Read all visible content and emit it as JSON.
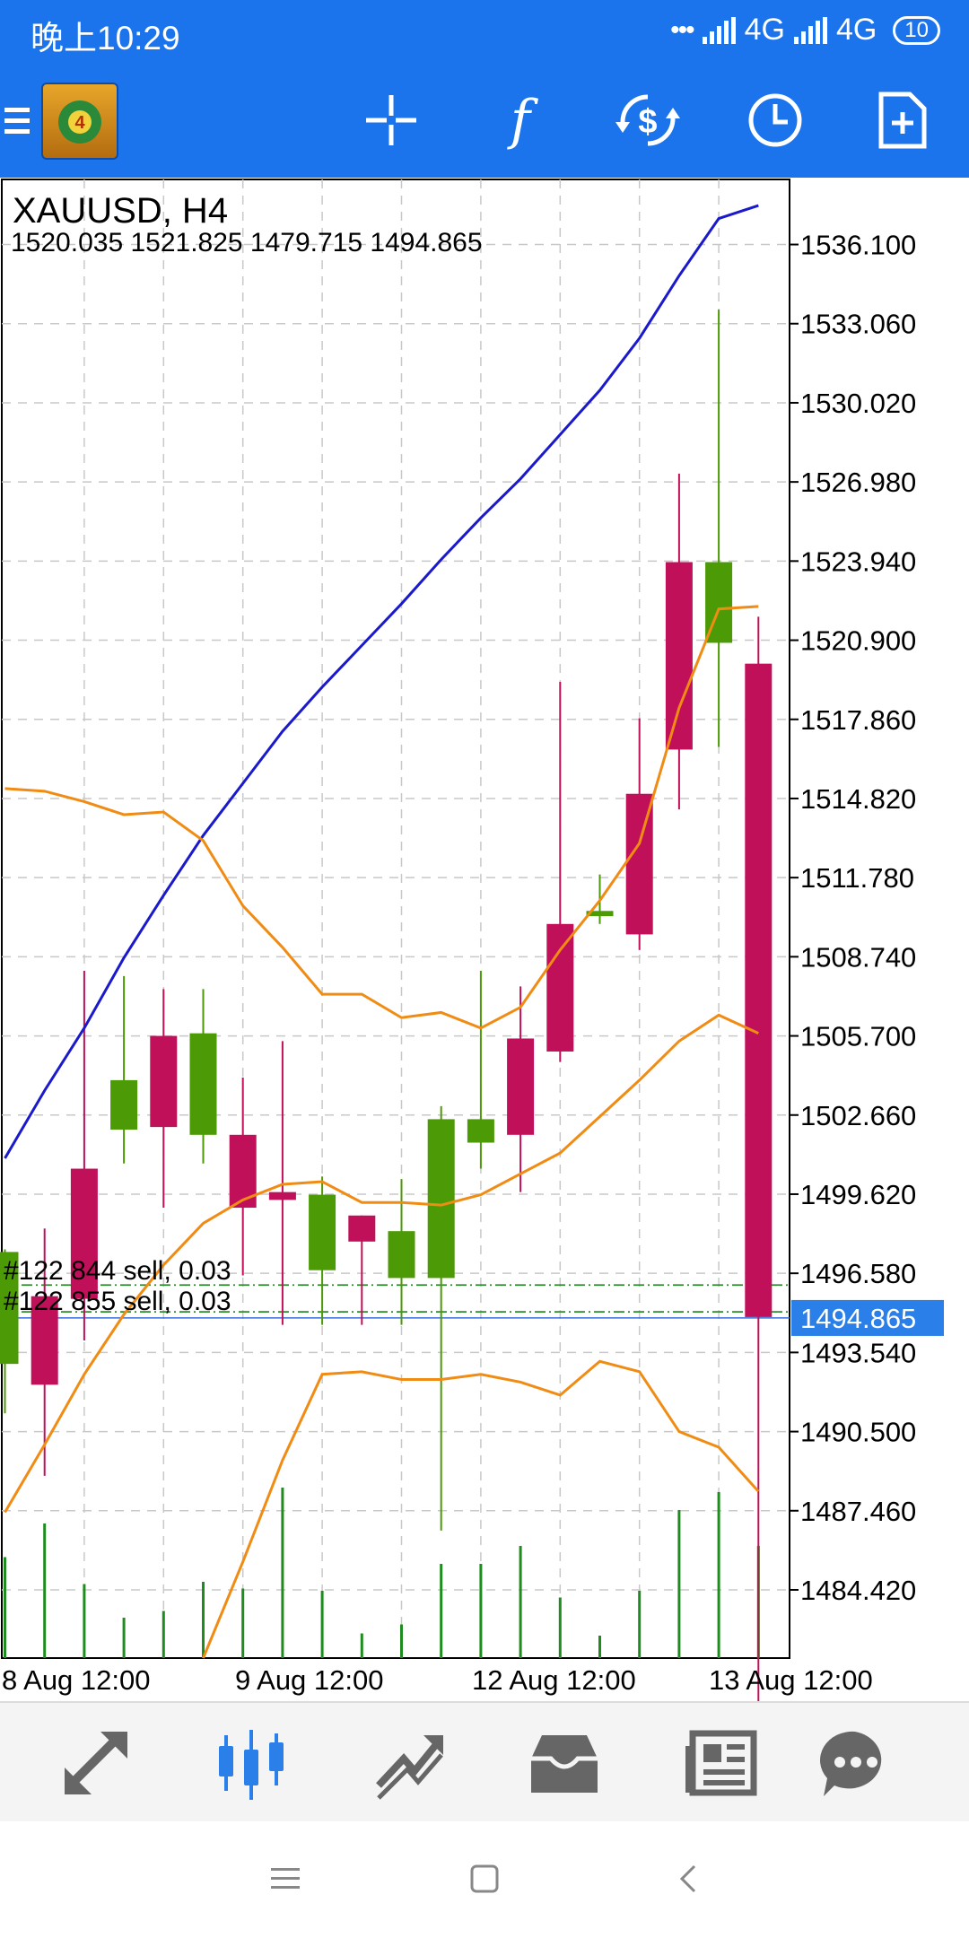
{
  "status_bar": {
    "time": "晚上10:29",
    "network1": "4G",
    "network2": "4G",
    "battery": "10"
  },
  "toolbar": {
    "icons": [
      "menu-icon",
      "mt4-logo-icon",
      "crosshair-icon",
      "function-icon",
      "trade-icon",
      "period-icon",
      "new-order-icon"
    ],
    "function_glyph": "f"
  },
  "chart_data": {
    "type": "candlestick",
    "title": "XAUUSD, H4",
    "ohlc_label": "1520.035 1521.825 1479.715 1494.865",
    "y_ticks": [
      "1536.100",
      "1533.060",
      "1530.020",
      "1526.980",
      "1523.940",
      "1520.900",
      "1517.860",
      "1514.820",
      "1511.780",
      "1508.740",
      "1505.700",
      "1502.660",
      "1499.620",
      "1496.580",
      "1493.540",
      "1490.500",
      "1487.460",
      "1484.420"
    ],
    "ylim": [
      1481.8,
      1538.6
    ],
    "x_tick_labels": [
      "8 Aug 12:00",
      "9 Aug 12:00",
      "12 Aug 12:00",
      "13 Aug 12:00"
    ],
    "current_price": "1494.865",
    "current_price_value": 1494.865,
    "grid": true,
    "candles": [
      {
        "o": 1493.1,
        "h": 1497.5,
        "l": 1491.2,
        "c": 1497.4
      },
      {
        "o": 1495.7,
        "h": 1498.3,
        "l": 1488.8,
        "c": 1492.3
      },
      {
        "o": 1500.6,
        "h": 1508.2,
        "l": 1494.0,
        "c": 1495.6
      },
      {
        "o": 1502.1,
        "h": 1508.0,
        "l": 1500.8,
        "c": 1504.0
      },
      {
        "o": 1505.7,
        "h": 1507.5,
        "l": 1499.1,
        "c": 1502.2
      },
      {
        "o": 1501.9,
        "h": 1507.5,
        "l": 1500.8,
        "c": 1505.8
      },
      {
        "o": 1501.9,
        "h": 1504.1,
        "l": 1496.5,
        "c": 1499.1
      },
      {
        "o": 1499.7,
        "h": 1505.5,
        "l": 1494.6,
        "c": 1499.4
      },
      {
        "o": 1496.7,
        "h": 1500.3,
        "l": 1494.6,
        "c": 1499.6
      },
      {
        "o": 1498.8,
        "h": 1498.8,
        "l": 1494.6,
        "c": 1497.8
      },
      {
        "o": 1496.4,
        "h": 1500.2,
        "l": 1494.6,
        "c": 1498.2
      },
      {
        "o": 1496.4,
        "h": 1503.0,
        "l": 1486.7,
        "c": 1502.5
      },
      {
        "o": 1501.6,
        "h": 1508.2,
        "l": 1500.6,
        "c": 1502.5
      },
      {
        "o": 1505.6,
        "h": 1507.6,
        "l": 1499.7,
        "c": 1501.9
      },
      {
        "o": 1510.0,
        "h": 1519.3,
        "l": 1504.7,
        "c": 1505.1
      },
      {
        "o": 1510.3,
        "h": 1511.9,
        "l": 1510.0,
        "c": 1510.5
      },
      {
        "o": 1515.0,
        "h": 1517.9,
        "l": 1509.0,
        "c": 1509.6
      },
      {
        "o": 1523.9,
        "h": 1527.3,
        "l": 1514.4,
        "c": 1516.7
      },
      {
        "o": 1520.8,
        "h": 1533.6,
        "l": 1516.8,
        "c": 1523.9
      },
      {
        "o": 1520.0,
        "h": 1521.8,
        "l": 1479.7,
        "c": 1494.9
      }
    ],
    "series": [
      {
        "name": "",
        "color": "#1a1acc",
        "values": [
          1501.0,
          1503.6,
          1506.0,
          1508.7,
          1511.1,
          1513.4,
          1515.4,
          1517.4,
          1519.1,
          1520.7,
          1522.3,
          1524.0,
          1525.6,
          1527.1,
          1528.8,
          1530.5,
          1532.5,
          1534.9,
          1537.1,
          1537.6
        ]
      },
      {
        "name": "",
        "color": "#f08c14",
        "values": [
          1515.2,
          1515.1,
          1514.7,
          1514.2,
          1514.3,
          1513.2,
          1510.7,
          1509.1,
          1507.3,
          1507.3,
          1506.4,
          1506.6,
          1506.0,
          1506.8,
          1509.0,
          1510.9,
          1513.1,
          1518.3,
          1522.1,
          1522.2
        ]
      },
      {
        "name": "",
        "color": "#f08c14",
        "values": [
          1487.4,
          1490.0,
          1492.7,
          1495.0,
          1496.9,
          1498.5,
          1499.4,
          1500.0,
          1500.1,
          1499.3,
          1499.3,
          1499.2,
          1499.6,
          1500.4,
          1501.2,
          1502.6,
          1504.0,
          1505.5,
          1506.5,
          1505.8
        ]
      },
      {
        "name": "",
        "color": "#f08c14",
        "values": [
          null,
          null,
          null,
          null,
          null,
          1481.8,
          1485.5,
          1489.4,
          1492.7,
          1492.8,
          1492.5,
          1492.5,
          1492.7,
          1492.4,
          1491.9,
          1493.2,
          1492.8,
          1490.5,
          1489.9,
          1488.2
        ]
      }
    ],
    "volumes": [
      0.45,
      0.6,
      0.33,
      0.18,
      0.21,
      0.34,
      0.31,
      0.76,
      0.3,
      0.11,
      0.15,
      0.42,
      0.42,
      0.5,
      0.27,
      0.1,
      0.3,
      0.66,
      0.74,
      0.5
    ],
    "orders": [
      {
        "label": "#122 844 sell, 0.03",
        "price": 1496.13
      },
      {
        "label": "#122 855 sell, 0.03",
        "price": 1495.1
      }
    ]
  },
  "bottom_nav": {
    "icons": [
      "quotes-icon",
      "chart-icon",
      "trade-icon",
      "history-icon",
      "news-icon",
      "chat-icon"
    ],
    "active": "chart-icon"
  },
  "system_nav": {
    "icons": [
      "menu-icon",
      "home-icon",
      "back-icon"
    ]
  }
}
